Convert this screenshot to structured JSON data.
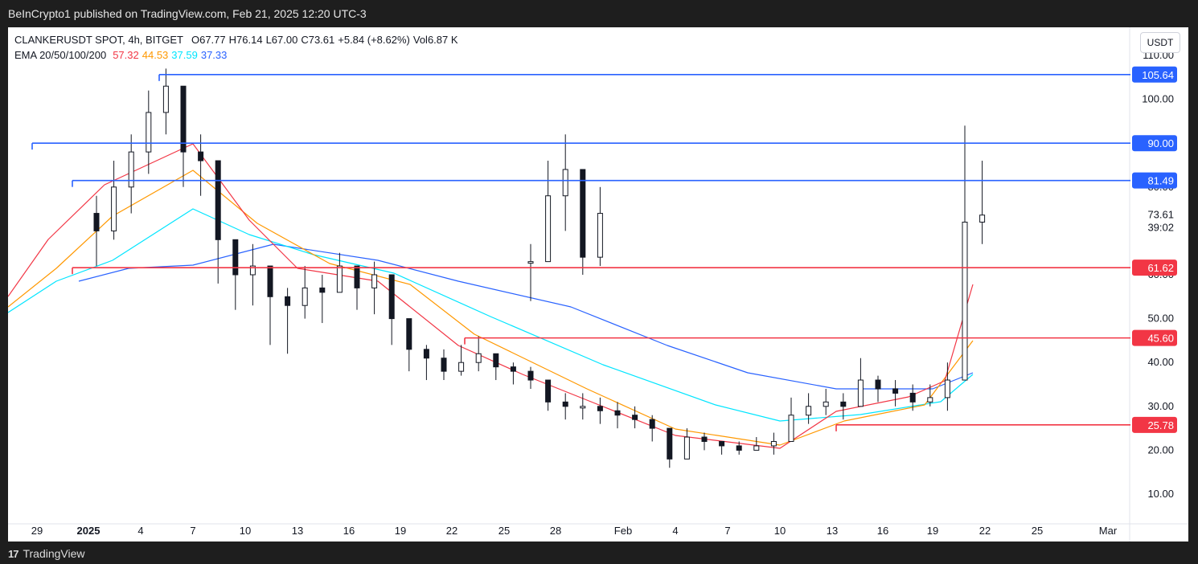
{
  "header": {
    "publisher_line": "BeInCrypto1 published on TradingView.com, Feb 21, 2025 12:20 UTC-3"
  },
  "legend": {
    "symbol_line": "CLANKERUSDT SPOT, 4h, BITGET",
    "o": "O67.77",
    "h": "H76.14",
    "l": "L67.00",
    "c": "C73.61",
    "change": "+5.84 (+8.62%)",
    "vol": "Vol6.87 K",
    "ema_label": "EMA 20/50/100/200",
    "ema_values": [
      {
        "value": "57.32",
        "color": "#f23645"
      },
      {
        "value": "44.53",
        "color": "#ff9800"
      },
      {
        "value": "37.59",
        "color": "#00e5ff"
      },
      {
        "value": "37.33",
        "color": "#2962ff"
      }
    ]
  },
  "currency_button": "USDT",
  "footer": {
    "brand": "TradingView",
    "brand_mark": "17"
  },
  "colors": {
    "blue_level": "#2962ff",
    "red_level": "#f23645",
    "ema20": "#f23645",
    "ema50": "#ff9800",
    "ema100": "#00e5ff",
    "ema200": "#2962ff",
    "candle": "#131722"
  },
  "chart_data": {
    "type": "line",
    "title": "CLANKERUSDT SPOT, 4h, BITGET",
    "x_ticks": [
      "29",
      "2025",
      "4",
      "7",
      "10",
      "13",
      "16",
      "19",
      "22",
      "25",
      "28",
      "Feb",
      "4",
      "7",
      "10",
      "13",
      "16",
      "19",
      "22",
      "25",
      "Mar"
    ],
    "y_ticks": [
      "110.00",
      "100.00",
      "90.00",
      "80.00",
      "73.61",
      "60.00",
      "50.00",
      "40.00",
      "30.00",
      "20.00",
      "10.00"
    ],
    "last_price": 73.61,
    "countdown": "39:02",
    "ylim": [
      5,
      112
    ],
    "price_levels": [
      {
        "value": 105.64,
        "label": "105.64",
        "color": "#2962ff",
        "start": "Jan 5"
      },
      {
        "value": 90.0,
        "label": "90.00",
        "color": "#2962ff",
        "start": "Dec 28"
      },
      {
        "value": 81.49,
        "label": "81.49",
        "color": "#2962ff",
        "start": "Dec 30"
      },
      {
        "value": 61.62,
        "label": "61.62",
        "color": "#f23645",
        "start": "Dec 30"
      },
      {
        "value": 45.6,
        "label": "45.60",
        "color": "#f23645",
        "start": "Jan 23"
      },
      {
        "value": 25.78,
        "label": "25.78",
        "color": "#f23645",
        "start": "Feb 13"
      }
    ],
    "price_series": {
      "name": "CLANKERUSDT close (approx)",
      "x": [
        "Dec 27",
        "Dec 28",
        "Dec 29",
        "Dec 30",
        "Dec 31",
        "Jan 1",
        "Jan 2",
        "Jan 3",
        "Jan 4",
        "Jan 5",
        "Jan 6",
        "Jan 7",
        "Jan 8",
        "Jan 9",
        "Jan 10",
        "Jan 11",
        "Jan 12",
        "Jan 13",
        "Jan 14",
        "Jan 15",
        "Jan 16",
        "Jan 17",
        "Jan 18",
        "Jan 19",
        "Jan 20",
        "Jan 21",
        "Jan 22",
        "Jan 23",
        "Jan 24",
        "Jan 25",
        "Jan 26",
        "Jan 27",
        "Jan 28",
        "Jan 29",
        "Jan 30",
        "Jan 31",
        "Feb 1",
        "Feb 2",
        "Feb 3",
        "Feb 4",
        "Feb 5",
        "Feb 6",
        "Feb 7",
        "Feb 8",
        "Feb 9",
        "Feb 10",
        "Feb 11",
        "Feb 12",
        "Feb 13",
        "Feb 14",
        "Feb 15",
        "Feb 16",
        "Feb 17",
        "Feb 18",
        "Feb 19",
        "Feb 20",
        "Feb 21"
      ],
      "values": [
        63,
        78,
        84,
        64,
        74,
        70,
        80,
        88,
        97,
        103,
        88,
        86,
        68,
        60,
        62,
        55,
        53,
        57,
        56,
        62,
        57,
        60,
        50,
        43,
        41,
        38,
        40,
        42,
        39,
        38,
        36,
        31,
        30,
        30,
        29,
        28,
        27,
        25,
        18,
        23,
        22,
        21,
        20,
        21,
        22,
        28,
        30,
        31,
        30,
        36,
        34,
        33,
        31,
        32,
        36,
        72,
        73.61
      ],
      "low": [
        54,
        64,
        70,
        60,
        62,
        62,
        68,
        74,
        83,
        92,
        80,
        78,
        58,
        52,
        53,
        44,
        42,
        50,
        49,
        56,
        52,
        51,
        44,
        38,
        36,
        36,
        37,
        38,
        36,
        35,
        34,
        29,
        27,
        27,
        26,
        25,
        25,
        22,
        16,
        21,
        20,
        19,
        19,
        20,
        19,
        25,
        26,
        28,
        27,
        31,
        31,
        30,
        29,
        30,
        29,
        55,
        67
      ],
      "high": [
        67,
        86,
        92,
        70,
        80,
        78,
        86,
        92,
        102,
        107,
        95,
        92,
        73,
        66,
        67,
        60,
        57,
        62,
        60,
        65,
        62,
        63,
        56,
        49,
        44,
        43,
        44,
        46,
        42,
        40,
        39,
        35,
        33,
        33,
        32,
        31,
        30,
        28,
        22,
        25,
        24,
        22,
        22,
        23,
        24,
        32,
        33,
        34,
        33,
        41,
        37,
        36,
        35,
        35,
        40,
        94,
        86
      ]
    },
    "series": [
      {
        "name": "EMA 20",
        "color": "#f23645",
        "value": 57.32
      },
      {
        "name": "EMA 50",
        "color": "#ff9800",
        "value": 44.53
      },
      {
        "name": "EMA 100",
        "color": "#00e5ff",
        "value": 37.59
      },
      {
        "name": "EMA 200",
        "color": "#2962ff",
        "value": 37.33
      }
    ],
    "grid": false,
    "legend_position": "top-left"
  }
}
